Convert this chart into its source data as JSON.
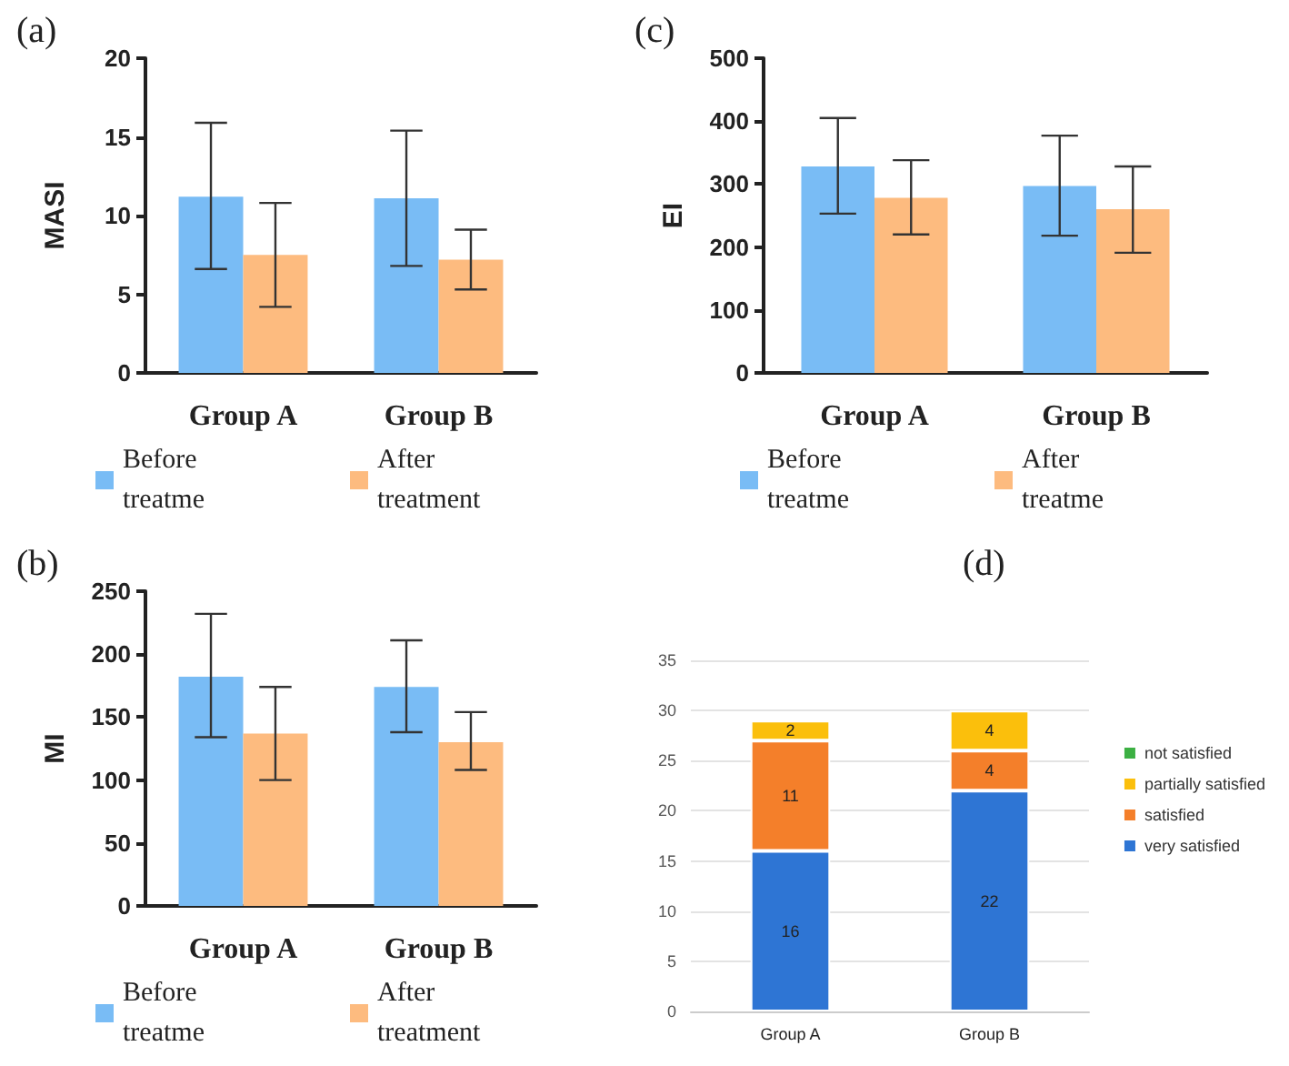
{
  "chart_data": [
    {
      "type": "bar",
      "title": "(a)",
      "ylabel": "MASI",
      "categories": [
        "Group A",
        "Group B"
      ],
      "ylim": [
        0,
        20
      ],
      "yticks": [
        0,
        5,
        10,
        15,
        20
      ],
      "grid": false,
      "legend": "bottom",
      "series": [
        {
          "name": "Before treatme",
          "color": "#79bcf5",
          "values": [
            11.2,
            11.1
          ],
          "errors": [
            [
              6.6,
              15.9
            ],
            [
              6.8,
              15.4
            ]
          ]
        },
        {
          "name": "After treatment",
          "color": "#fdbb7f",
          "values": [
            7.5,
            7.2
          ],
          "errors": [
            [
              4.2,
              10.8
            ],
            [
              5.3,
              9.1
            ]
          ]
        }
      ]
    },
    {
      "type": "bar",
      "title": "(c)",
      "ylabel": "EI",
      "categories": [
        "Group A",
        "Group B"
      ],
      "ylim": [
        0,
        500
      ],
      "yticks": [
        0,
        100,
        200,
        300,
        400,
        500
      ],
      "grid": false,
      "legend": "bottom",
      "series": [
        {
          "name": "Before treatme",
          "color": "#79bcf5",
          "values": [
            328,
            297
          ],
          "errors": [
            [
              253,
              405
            ],
            [
              218,
              377
            ]
          ]
        },
        {
          "name": "After treatme",
          "color": "#fdbb7f",
          "values": [
            278,
            260
          ],
          "errors": [
            [
              220,
              338
            ],
            [
              191,
              328
            ]
          ]
        }
      ]
    },
    {
      "type": "bar",
      "title": "(b)",
      "ylabel": "MI",
      "categories": [
        "Group A",
        "Group B"
      ],
      "ylim": [
        0,
        250
      ],
      "yticks": [
        0,
        50,
        100,
        150,
        200,
        250
      ],
      "grid": false,
      "legend": "bottom",
      "series": [
        {
          "name": "Before treatme",
          "color": "#79bcf5",
          "values": [
            182,
            174
          ],
          "errors": [
            [
              134,
              232
            ],
            [
              138,
              211
            ]
          ]
        },
        {
          "name": "After treatment",
          "color": "#fdbb7f",
          "values": [
            137,
            130
          ],
          "errors": [
            [
              100,
              174
            ],
            [
              108,
              154
            ]
          ]
        }
      ]
    },
    {
      "type": "bar",
      "title": "(d)",
      "categories": [
        "Group A",
        "Group B"
      ],
      "ylim": [
        0,
        35
      ],
      "yticks": [
        0,
        5,
        10,
        15,
        20,
        25,
        30,
        35
      ],
      "grid": "y",
      "legend": "right",
      "stacked": true,
      "series": [
        {
          "name": "very satisfied",
          "color": "#2e75d4",
          "values": [
            16,
            22
          ],
          "value_labels": [
            "16",
            "22"
          ]
        },
        {
          "name": "satisfied",
          "color": "#f47f2a",
          "values": [
            11,
            4
          ],
          "value_labels": [
            "11",
            "4"
          ]
        },
        {
          "name": "partially satisfied",
          "color": "#fbbf0c",
          "values": [
            2,
            4
          ],
          "value_labels": [
            "2",
            "4"
          ]
        },
        {
          "name": "not satisfied",
          "color": "#3cb043",
          "values": [
            0,
            0
          ],
          "value_labels": [
            null,
            null
          ]
        }
      ]
    }
  ]
}
